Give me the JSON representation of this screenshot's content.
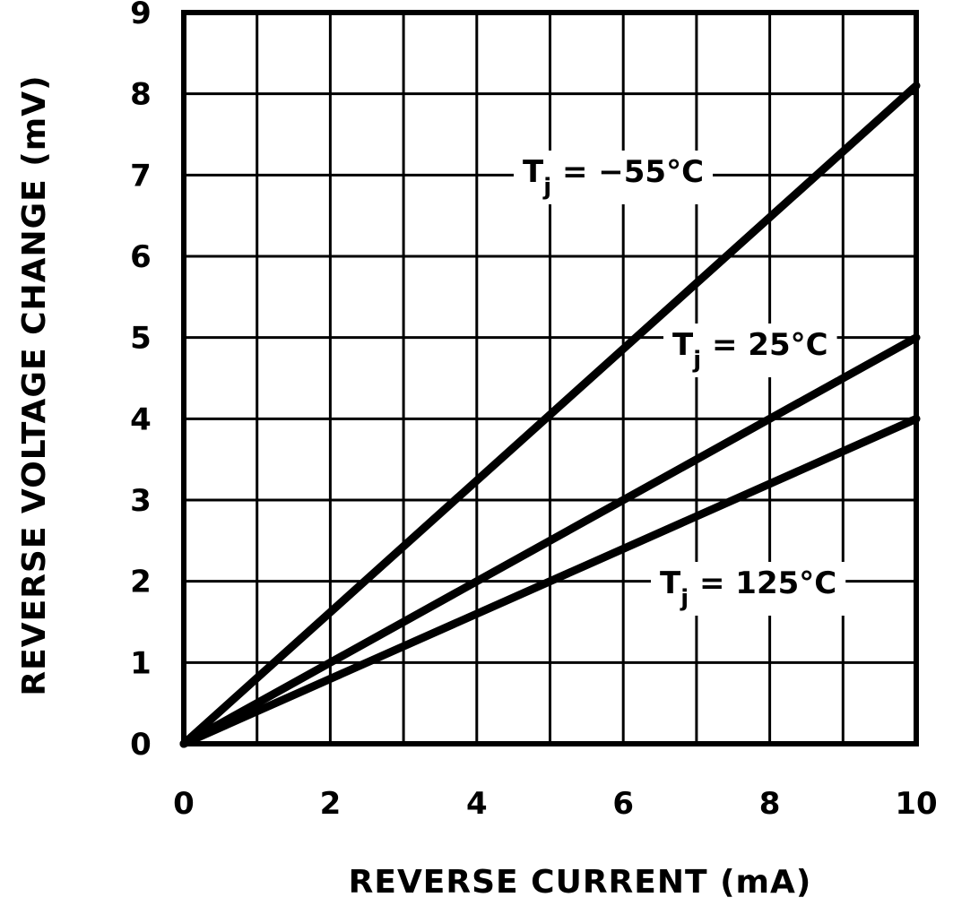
{
  "chart_data": {
    "type": "line",
    "title": "",
    "xlabel": "REVERSE CURRENT (mA)",
    "ylabel": "REVERSE VOLTAGE CHANGE (mV)",
    "xlim": [
      0,
      10
    ],
    "ylim": [
      0,
      9
    ],
    "x_ticks": [
      0,
      2,
      4,
      6,
      8,
      10
    ],
    "x_tick_labels": [
      "0",
      "2",
      "4",
      "6",
      "8",
      "10"
    ],
    "y_ticks": [
      0,
      1,
      2,
      3,
      4,
      5,
      6,
      7,
      8,
      9
    ],
    "y_tick_labels": [
      "0",
      "1",
      "2",
      "3",
      "4",
      "5",
      "6",
      "7",
      "8",
      "9"
    ],
    "grid": true,
    "x_grid_step": 1,
    "y_grid_step": 1,
    "series": [
      {
        "name": "Tj = -55°C",
        "label_main": "T",
        "label_sub": "j",
        "label_rest": " = −55°C",
        "x": [
          0,
          10
        ],
        "values": [
          0,
          8.1
        ]
      },
      {
        "name": "Tj = 25°C",
        "label_main": "T",
        "label_sub": "j",
        "label_rest": " = 25°C",
        "x": [
          0,
          10
        ],
        "values": [
          0,
          5.0
        ]
      },
      {
        "name": "Tj = 125°C",
        "label_main": "T",
        "label_sub": "j",
        "label_rest": " = 125°C",
        "x": [
          0,
          10
        ],
        "values": [
          0,
          4.0
        ]
      }
    ]
  }
}
